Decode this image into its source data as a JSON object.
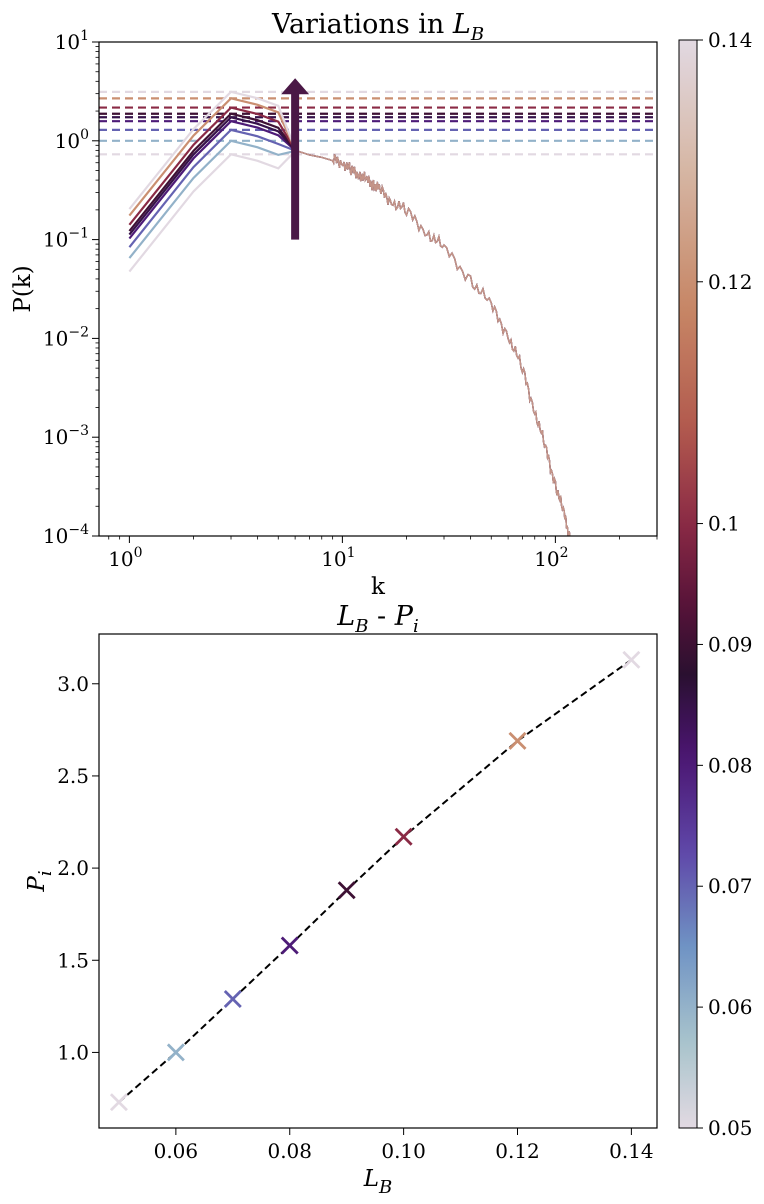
{
  "colormap": {
    "name": "twilight-like",
    "stops": [
      {
        "v": 0.05,
        "color": "#e2d9e2"
      },
      {
        "v": 0.057,
        "color": "#a9c4cc"
      },
      {
        "v": 0.065,
        "color": "#6f93c4"
      },
      {
        "v": 0.073,
        "color": "#5f46a8"
      },
      {
        "v": 0.081,
        "color": "#4a1570"
      },
      {
        "v": 0.0875,
        "color": "#2a1030"
      },
      {
        "v": 0.093,
        "color": "#551238"
      },
      {
        "v": 0.1,
        "color": "#8a2a45"
      },
      {
        "v": 0.108,
        "color": "#b25a4e"
      },
      {
        "v": 0.118,
        "color": "#c78766"
      },
      {
        "v": 0.13,
        "color": "#d7b9a8"
      },
      {
        "v": 0.14,
        "color": "#e2d9e2"
      }
    ]
  },
  "chart_data": [
    {
      "type": "line",
      "title_text": "Variations in ",
      "title_var": "L",
      "title_sub": "B",
      "xlabel": "k",
      "ylabel": "P(k)",
      "xscale": "log",
      "yscale": "log",
      "xlim": [
        0.72,
        300
      ],
      "ylim": [
        0.0001,
        10
      ],
      "xticks": [
        {
          "value": 1,
          "base": "10",
          "exp": "0"
        },
        {
          "value": 10,
          "base": "10",
          "exp": "1"
        },
        {
          "value": 100,
          "base": "10",
          "exp": "2"
        }
      ],
      "yticks": [
        {
          "value": 0.0001,
          "base": "10",
          "exp": "−4"
        },
        {
          "value": 0.001,
          "base": "10",
          "exp": "−3"
        },
        {
          "value": 0.01,
          "base": "10",
          "exp": "−2"
        },
        {
          "value": 0.1,
          "base": "10",
          "exp": "−1"
        },
        {
          "value": 1,
          "base": "10",
          "exp": "0"
        },
        {
          "value": 10,
          "base": "10",
          "exp": "1"
        }
      ],
      "lb_values": [
        0.05,
        0.06,
        0.07,
        0.08,
        0.085,
        0.09,
        0.1,
        0.12,
        0.14
      ],
      "plateau_levels": [
        0.73,
        1.0,
        1.29,
        1.58,
        1.73,
        1.88,
        2.17,
        2.69,
        3.13
      ],
      "low_k_shape": {
        "k": [
          1,
          2,
          3,
          4,
          5,
          6
        ],
        "factor": [
          0.065,
          0.42,
          1.0,
          0.86,
          0.72,
          1.2
        ]
      },
      "common_tail": {
        "k": [
          6,
          7,
          8,
          9,
          10,
          11,
          12,
          13,
          14,
          15,
          17,
          20,
          25,
          30,
          40,
          50,
          60,
          70,
          80,
          90,
          100,
          110,
          117
        ],
        "p": [
          0.8,
          0.72,
          0.68,
          0.63,
          0.62,
          0.49,
          0.47,
          0.39,
          0.37,
          0.31,
          0.25,
          0.19,
          0.12,
          0.08,
          0.04,
          0.021,
          0.011,
          0.0048,
          0.0019,
          0.00075,
          0.00034,
          0.00016,
          0.0001
        ]
      },
      "arrow": {
        "k": 6,
        "from": 0.1,
        "to": 4.3,
        "color": "#4a1846"
      }
    },
    {
      "type": "scatter",
      "title_var1": "L",
      "title_sub1": "B",
      "title_sep": " - ",
      "title_var2": "P",
      "title_sub2": "i",
      "xlabel_var": "L",
      "xlabel_sub": "B",
      "ylabel_var": "P",
      "ylabel_sub": "i",
      "xlim": [
        0.0465,
        0.1445
      ],
      "ylim": [
        0.59,
        3.27
      ],
      "xticks": [
        "0.06",
        "0.08",
        "0.10",
        "0.12",
        "0.14"
      ],
      "yticks": [
        "1.0",
        "1.5",
        "2.0",
        "2.5",
        "3.0"
      ],
      "x": [
        0.05,
        0.06,
        0.07,
        0.08,
        0.09,
        0.1,
        0.12,
        0.14
      ],
      "y": [
        0.73,
        1.0,
        1.29,
        1.58,
        1.88,
        2.17,
        2.69,
        3.13
      ],
      "fit_line": {
        "x": [
          0.05,
          0.14
        ],
        "y": [
          0.7,
          3.15
        ],
        "style": "dashed",
        "color": "#000000"
      }
    }
  ],
  "colorbar": {
    "min": 0.05,
    "max": 0.14,
    "tick_values": [
      0.05,
      0.06,
      0.07,
      0.08,
      0.09,
      0.1,
      0.12,
      0.14
    ],
    "tick_labels": [
      "0.05",
      "0.06",
      "0.07",
      "0.08",
      "0.09",
      "0.1",
      "0.12",
      "0.14"
    ]
  }
}
